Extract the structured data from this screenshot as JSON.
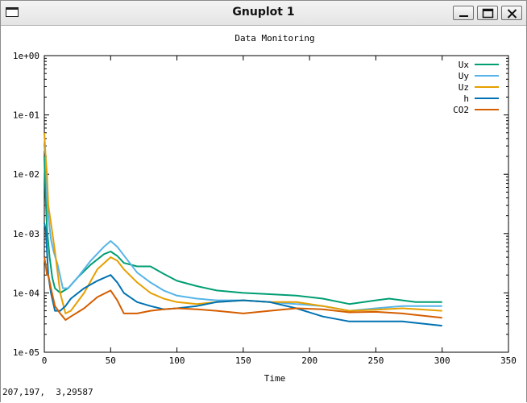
{
  "window": {
    "title": "Gnuplot 1",
    "icon": "window-icon",
    "controls": [
      "minimize-icon",
      "maximize-icon",
      "close-icon"
    ]
  },
  "status_bar": {
    "coords": "207,197,  3,29587"
  },
  "chart_data": {
    "type": "line",
    "title": "Data Monitoring",
    "xlabel": "Time",
    "ylabel": "",
    "xlim": [
      0,
      350
    ],
    "ylim": [
      1e-05,
      1
    ],
    "yscale": "log",
    "grid": false,
    "legend_position": "top-right",
    "x_ticks": [
      0,
      50,
      100,
      150,
      200,
      250,
      300,
      350
    ],
    "x_tick_labels": [
      "0",
      "50",
      "100",
      "150",
      "200",
      "250",
      "300",
      "350"
    ],
    "y_ticks": [
      1e-05,
      0.0001,
      0.001,
      0.01,
      0.1,
      1
    ],
    "y_tick_labels": [
      "1e-05",
      "1e-04",
      "1e-03",
      "1e-02",
      "1e-01",
      "1e+00"
    ],
    "series": [
      {
        "name": "Ux",
        "color": "#009e73",
        "x": [
          0,
          1,
          2,
          4,
          6,
          8,
          12,
          18,
          25,
          35,
          45,
          50,
          55,
          60,
          70,
          80,
          90,
          100,
          115,
          130,
          150,
          170,
          190,
          210,
          230,
          250,
          260,
          270,
          280,
          300
        ],
        "y": [
          0.02,
          0.004,
          0.0012,
          0.0004,
          0.00018,
          0.00012,
          0.0001,
          0.00012,
          0.00018,
          0.0003,
          0.00045,
          0.0005,
          0.00042,
          0.00032,
          0.00028,
          0.00028,
          0.00021,
          0.00016,
          0.00013,
          0.00011,
          0.0001,
          9.5e-05,
          9e-05,
          8e-05,
          6.5e-05,
          7.5e-05,
          8e-05,
          7.5e-05,
          7e-05,
          7e-05
        ]
      },
      {
        "name": "Uy",
        "color": "#56b4e9",
        "x": [
          0,
          1,
          2,
          3,
          5,
          7,
          10,
          14,
          18,
          25,
          35,
          45,
          50,
          55,
          60,
          70,
          80,
          90,
          100,
          115,
          130,
          150,
          170,
          190,
          210,
          230,
          250,
          270,
          300
        ],
        "y": [
          0.03,
          0.02,
          0.004,
          0.002,
          0.0008,
          0.0005,
          0.0003,
          0.00012,
          0.00012,
          0.00018,
          0.00035,
          0.0006,
          0.00075,
          0.0006,
          0.00043,
          0.00022,
          0.00015,
          0.00011,
          9e-05,
          8e-05,
          7.5e-05,
          7.5e-05,
          7e-05,
          6.5e-05,
          6e-05,
          5e-05,
          5.5e-05,
          6e-05,
          6e-05
        ]
      },
      {
        "name": "Uz",
        "color": "#e69f00",
        "x": [
          0,
          1,
          2,
          3,
          5,
          8,
          12,
          16,
          20,
          30,
          40,
          50,
          55,
          60,
          70,
          80,
          90,
          100,
          115,
          130,
          150,
          170,
          190,
          210,
          230,
          250,
          270,
          300
        ],
        "y": [
          0.05,
          0.02,
          0.01,
          0.003,
          0.0015,
          0.0005,
          0.0001,
          4.5e-05,
          5e-05,
          0.0001,
          0.00025,
          0.0004,
          0.00035,
          0.00025,
          0.00015,
          0.0001,
          8e-05,
          7e-05,
          6.5e-05,
          7e-05,
          7.5e-05,
          7e-05,
          7e-05,
          6e-05,
          5e-05,
          5.2e-05,
          5.5e-05,
          5e-05
        ]
      },
      {
        "name": "h",
        "color": "#0072b2",
        "x": [
          0,
          1,
          2,
          3,
          5,
          8,
          12,
          16,
          20,
          30,
          40,
          50,
          55,
          60,
          70,
          80,
          90,
          100,
          115,
          130,
          150,
          170,
          190,
          210,
          230,
          250,
          270,
          300
        ],
        "y": [
          0.0015,
          0.0012,
          0.0005,
          0.0002,
          0.0001,
          5e-05,
          5e-05,
          6e-05,
          8e-05,
          0.00012,
          0.00016,
          0.0002,
          0.00015,
          0.0001,
          7e-05,
          6e-05,
          5.3e-05,
          5.5e-05,
          6e-05,
          7e-05,
          7.5e-05,
          7e-05,
          5.5e-05,
          4e-05,
          3.3e-05,
          3.3e-05,
          3.3e-05,
          2.8e-05
        ]
      },
      {
        "name": "CO2",
        "color": "#d55e00",
        "x": [
          0,
          1,
          2,
          3,
          5,
          8,
          12,
          16,
          20,
          30,
          40,
          50,
          55,
          60,
          70,
          80,
          90,
          100,
          115,
          130,
          150,
          170,
          190,
          210,
          230,
          250,
          270,
          300
        ],
        "y": [
          0.0004,
          0.0003,
          0.0002,
          0.0002,
          0.00012,
          6e-05,
          4.5e-05,
          3.5e-05,
          4e-05,
          5.5e-05,
          8.5e-05,
          0.00011,
          7.5e-05,
          4.5e-05,
          4.5e-05,
          5e-05,
          5.3e-05,
          5.5e-05,
          5.3e-05,
          5e-05,
          4.5e-05,
          5e-05,
          5.5e-05,
          5.3e-05,
          4.7e-05,
          4.8e-05,
          4.5e-05,
          3.8e-05
        ]
      }
    ]
  }
}
